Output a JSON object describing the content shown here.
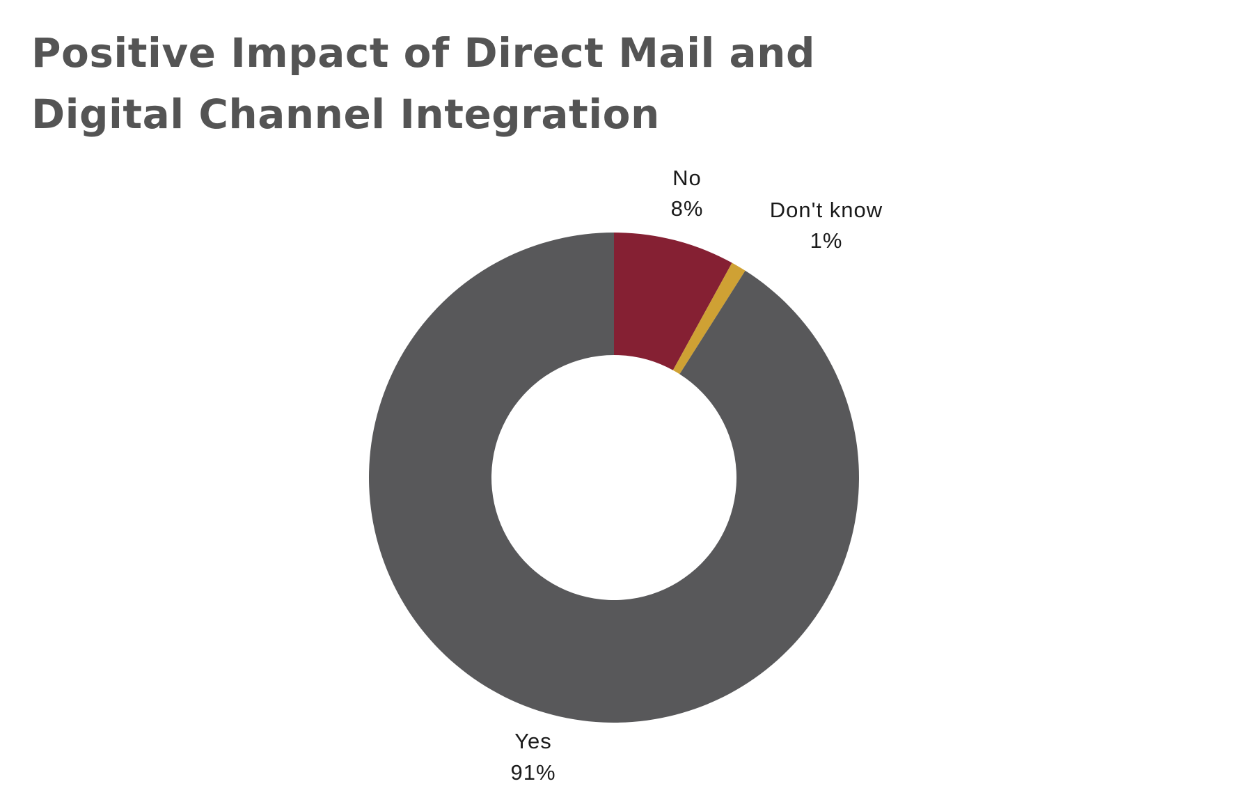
{
  "chart_data": {
    "type": "pie",
    "title_lines": [
      "Positive Impact of Direct Mail and",
      "Digital Channel Integration"
    ],
    "slices": [
      {
        "label": "No",
        "value": 8,
        "value_label": "8%",
        "color": "#852033"
      },
      {
        "label": "Don't know",
        "value": 1,
        "value_label": "1%",
        "color": "#CFA134"
      },
      {
        "label": "Yes",
        "value": 91,
        "value_label": "91%",
        "color": "#58585A"
      }
    ],
    "donut": true,
    "start_angle": "12 o'clock, clockwise",
    "legend": "none (labels outside slices)"
  }
}
